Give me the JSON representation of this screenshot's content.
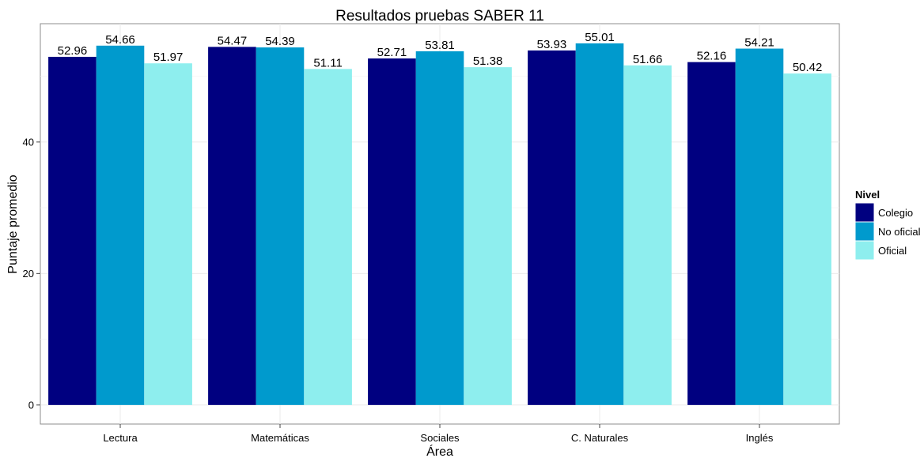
{
  "chart_data": {
    "type": "bar",
    "title": "Resultados pruebas SABER 11",
    "xlabel": "Área",
    "ylabel": "Puntaje promedio",
    "categories": [
      "Lectura",
      "Matemáticas",
      "Sociales",
      "C. Naturales",
      "Inglés"
    ],
    "series": [
      {
        "name": "Colegio",
        "color": "#000080",
        "values": [
          52.96,
          54.47,
          52.71,
          53.93,
          52.16
        ],
        "labels": [
          "52.96",
          "54.47",
          "52.71",
          "53.93",
          "52.16"
        ]
      },
      {
        "name": "No oficial",
        "color": "#009acd",
        "values": [
          54.66,
          54.39,
          53.81,
          55.01,
          54.21
        ],
        "labels": [
          "54.66",
          "54.39",
          "53.81",
          "55.01",
          "54.21"
        ]
      },
      {
        "name": "Oficial",
        "color": "#8eeeee",
        "values": [
          51.97,
          51.11,
          51.38,
          51.66,
          50.42
        ],
        "labels": [
          "51.97",
          "51.11",
          "51.38",
          "51.66",
          "50.42"
        ]
      }
    ],
    "yticks": [
      0,
      20,
      40
    ],
    "ytick_labels": [
      "0",
      "20",
      "40"
    ],
    "ylim": [
      -2.9,
      58
    ],
    "legend": {
      "title": "Nivel",
      "position": "right"
    },
    "grid": true
  }
}
